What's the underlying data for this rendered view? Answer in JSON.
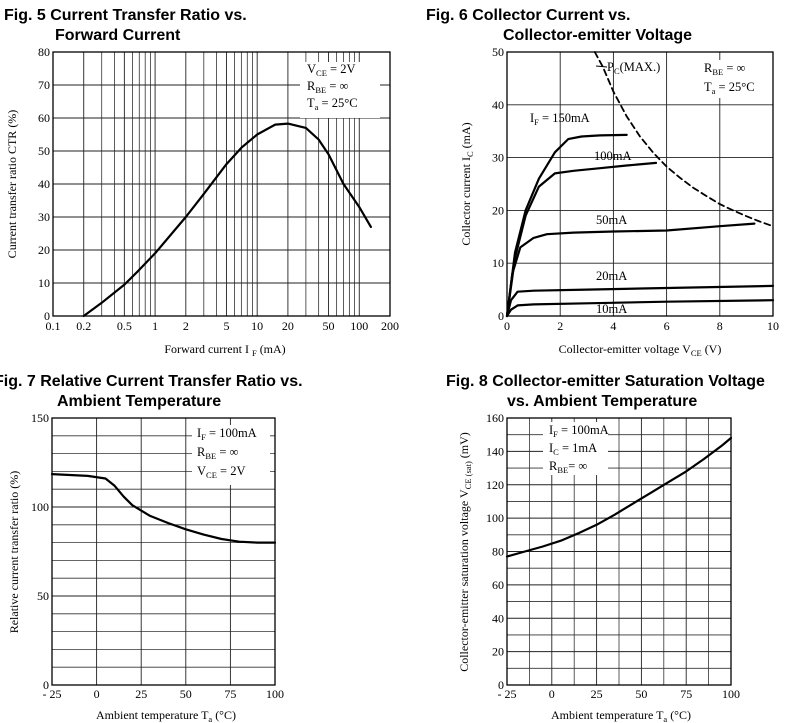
{
  "chart_data": [
    {
      "id": "fig5",
      "type": "line",
      "title_lines": [
        "Fig. 5 Current Transfer Ratio vs.",
        "Forward Current"
      ],
      "xlabel": "Forward current I F (mA)",
      "ylabel": "Current transfer ratio CTR (%)",
      "x_scale": "log",
      "xlim": [
        0.1,
        200
      ],
      "ylim": [
        0,
        80
      ],
      "x_ticks": [
        0.1,
        0.2,
        0.5,
        1,
        2,
        5,
        10,
        20,
        50,
        100,
        200
      ],
      "x_tick_labels": [
        "0.1",
        "0.2",
        "0.5",
        "1",
        "2",
        "5",
        "10",
        "20",
        "50",
        "100",
        "200"
      ],
      "y_ticks": [
        0,
        10,
        20,
        30,
        40,
        50,
        60,
        70,
        80
      ],
      "grid": true,
      "conditions": [
        {
          "main": "V",
          "sub": "CE",
          "rest": " = 2V"
        },
        {
          "main": "R",
          "sub": "BE",
          "rest": " = ∞"
        },
        {
          "main": "T",
          "sub": "a",
          "rest": " = 25°C"
        }
      ],
      "series": [
        {
          "x": [
            0.2,
            0.3,
            0.5,
            0.7,
            1,
            2,
            3,
            5,
            7,
            10,
            15,
            20,
            30,
            40,
            50,
            70,
            100,
            130
          ],
          "y": [
            0,
            4,
            9.5,
            14,
            19,
            30,
            37,
            46,
            51,
            55,
            58,
            58.3,
            57,
            53.5,
            49,
            40,
            33,
            27
          ],
          "style": "solid"
        }
      ]
    },
    {
      "id": "fig6",
      "type": "line",
      "title_lines": [
        "Fig. 6 Collector Current vs.",
        "Collector-emitter Voltage"
      ],
      "xlabel": "Collector-emitter voltage V CE (V)",
      "ylabel": "Collector current I C (mA)",
      "xlim": [
        0,
        10
      ],
      "ylim": [
        0,
        50
      ],
      "x_ticks": [
        0,
        2,
        4,
        6,
        8,
        10
      ],
      "y_ticks": [
        0,
        10,
        20,
        30,
        40,
        50
      ],
      "grid": true,
      "conditions": [
        {
          "main": "R",
          "sub": "BE",
          "rest": " = ∞"
        },
        {
          "main": "T",
          "sub": "a",
          "rest": " = 25°C"
        }
      ],
      "series": [
        {
          "name": "IF = 150mA",
          "label": {
            "main": "I",
            "sub": "F",
            "rest": " = 150mA"
          },
          "x": [
            0,
            0.3,
            0.7,
            1.2,
            1.8,
            2.3,
            2.8,
            3.5,
            4.5
          ],
          "y": [
            0,
            12,
            20,
            26,
            31,
            33.5,
            34,
            34.2,
            34.3
          ],
          "style": "solid"
        },
        {
          "name": "100mA",
          "label": {
            "main": "100mA",
            "sub": "",
            "rest": ""
          },
          "x": [
            0,
            0.3,
            0.7,
            1.2,
            1.8,
            2.5,
            3.5,
            4.5,
            5.6
          ],
          "y": [
            0,
            11,
            19,
            24.5,
            27,
            27.5,
            28,
            28.5,
            29
          ],
          "style": "solid"
        },
        {
          "name": "50mA",
          "label": {
            "main": "50mA",
            "sub": "",
            "rest": ""
          },
          "x": [
            0,
            0.2,
            0.5,
            1,
            1.5,
            2.5,
            4,
            6,
            8,
            9.3
          ],
          "y": [
            0,
            8,
            13,
            14.8,
            15.5,
            15.8,
            16,
            16.2,
            17,
            17.5
          ],
          "style": "solid"
        },
        {
          "name": "20mA",
          "label": {
            "main": "20mA",
            "sub": "",
            "rest": ""
          },
          "x": [
            0,
            0.15,
            0.4,
            1,
            3,
            6,
            10
          ],
          "y": [
            0,
            3,
            4.6,
            4.8,
            5,
            5.3,
            5.7
          ],
          "style": "solid"
        },
        {
          "name": "10mA",
          "label": {
            "main": "10mA",
            "sub": "",
            "rest": ""
          },
          "x": [
            0,
            0.15,
            0.4,
            1,
            3,
            6,
            10
          ],
          "y": [
            0,
            1.2,
            2,
            2.2,
            2.4,
            2.7,
            3
          ],
          "style": "solid"
        },
        {
          "name": "PC(MAX.)",
          "label": {
            "main": "P",
            "sub": "C",
            "rest": "(MAX.)"
          },
          "x": [
            3.3,
            3.6,
            4,
            4.5,
            5,
            5.5,
            6,
            6.5,
            7,
            7.5,
            8,
            8.5,
            9,
            9.5,
            10
          ],
          "y": [
            50,
            47.2,
            42.5,
            37.8,
            34,
            30.9,
            28.3,
            26.2,
            24.3,
            22.7,
            21.2,
            20,
            18.9,
            17.9,
            17
          ],
          "style": "dashed"
        }
      ]
    },
    {
      "id": "fig7",
      "type": "line",
      "title_lines": [
        "Fig. 7 Relative Current Transfer Ratio vs.",
        "Ambient Temperature"
      ],
      "xlabel": "Ambient temperature T a (°C)",
      "ylabel": "Relative current transfer ratio (%)",
      "xlim": [
        -25,
        100
      ],
      "ylim": [
        0,
        150
      ],
      "x_ticks": [
        -25,
        0,
        25,
        50,
        75,
        100
      ],
      "x_tick_labels": [
        "- 25",
        "0",
        "25",
        "50",
        "75",
        "100"
      ],
      "y_ticks": [
        0,
        50,
        100,
        150
      ],
      "grid": true,
      "conditions": [
        {
          "main": "I",
          "sub": "F",
          "rest": " = 100mA"
        },
        {
          "main": "R",
          "sub": "BE",
          "rest": " = ∞"
        },
        {
          "main": "V",
          "sub": "CE",
          "rest": " = 2V"
        }
      ],
      "series": [
        {
          "x": [
            -25,
            -15,
            -5,
            5,
            10,
            15,
            20,
            30,
            40,
            50,
            60,
            70,
            80,
            90,
            100
          ],
          "y": [
            118.5,
            118,
            117.5,
            116,
            112,
            106,
            101,
            95,
            91,
            87.5,
            84.5,
            82,
            80.5,
            80,
            80
          ],
          "style": "solid"
        }
      ]
    },
    {
      "id": "fig8",
      "type": "line",
      "title_lines": [
        "Fig. 8 Collector-emitter Saturation Voltage",
        "vs. Ambient Temperature"
      ],
      "xlabel": "Ambient temperature T a (°C)",
      "ylabel": "Collector-emitter saturation voltage V CE (sat) (mV)",
      "xlim": [
        -25,
        100
      ],
      "ylim": [
        0,
        160
      ],
      "x_ticks": [
        -25,
        0,
        25,
        50,
        75,
        100
      ],
      "x_tick_labels": [
        "- 25",
        "0",
        "25",
        "50",
        "75",
        "100"
      ],
      "y_ticks": [
        0,
        20,
        40,
        60,
        80,
        100,
        120,
        140,
        160
      ],
      "grid": true,
      "conditions": [
        {
          "main": "I",
          "sub": "F",
          "rest": " = 100mA"
        },
        {
          "main": "I",
          "sub": "C",
          "rest": " = 1mA"
        },
        {
          "main": "R",
          "sub": "BE",
          "rest": "= ∞"
        }
      ],
      "series": [
        {
          "x": [
            -25,
            -15,
            -5,
            5,
            15,
            25,
            35,
            45,
            55,
            65,
            75,
            85,
            95,
            100
          ],
          "y": [
            77,
            80,
            83,
            86.5,
            91,
            96,
            102,
            108.5,
            115,
            121.5,
            128,
            135.5,
            143.5,
            148
          ],
          "style": "solid"
        }
      ]
    }
  ]
}
